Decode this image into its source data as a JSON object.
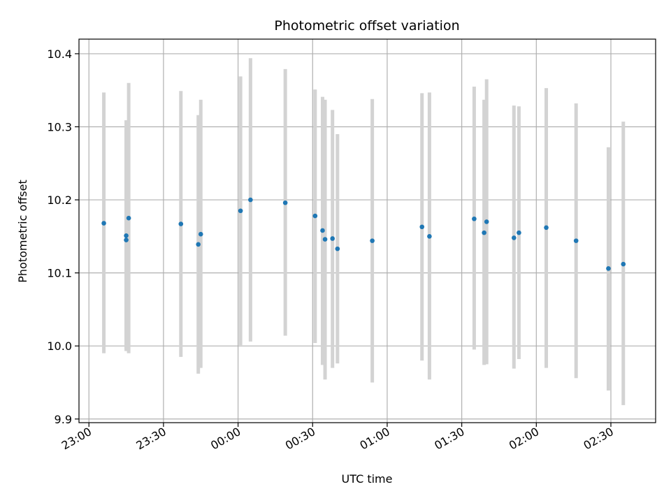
{
  "chart_data": {
    "type": "scatter",
    "title": "Photometric offset variation",
    "xlabel": "UTC time",
    "ylabel": "Photometric offset",
    "xlim": [
      "22:56",
      "02:48"
    ],
    "ylim": [
      9.895,
      10.42
    ],
    "x_ticks": [
      "23:00",
      "23:30",
      "00:00",
      "00:30",
      "01:00",
      "01:30",
      "02:00",
      "02:30"
    ],
    "y_ticks": [
      "9.9",
      "10.0",
      "10.1",
      "10.2",
      "10.3",
      "10.4"
    ],
    "grid": true,
    "point_color": "#1f77b4",
    "errorbar_color": "#d3d3d3",
    "points": [
      {
        "t": "23:06",
        "y": 10.168,
        "lo": 9.99,
        "hi": 10.347
      },
      {
        "t": "23:15",
        "y": 10.151,
        "lo": 9.995,
        "hi": 10.309
      },
      {
        "t": "23:15",
        "y": 10.145,
        "lo": 9.993,
        "hi": 10.297
      },
      {
        "t": "23:16",
        "y": 10.175,
        "lo": 9.99,
        "hi": 10.36
      },
      {
        "t": "23:37",
        "y": 10.167,
        "lo": 9.985,
        "hi": 10.349
      },
      {
        "t": "23:44",
        "y": 10.139,
        "lo": 9.962,
        "hi": 10.316
      },
      {
        "t": "23:45",
        "y": 10.153,
        "lo": 9.97,
        "hi": 10.337
      },
      {
        "t": "00:01",
        "y": 10.185,
        "lo": 10.001,
        "hi": 10.369
      },
      {
        "t": "00:05",
        "y": 10.2,
        "lo": 10.006,
        "hi": 10.394
      },
      {
        "t": "00:19",
        "y": 10.196,
        "lo": 10.014,
        "hi": 10.379
      },
      {
        "t": "00:31",
        "y": 10.178,
        "lo": 10.004,
        "hi": 10.351
      },
      {
        "t": "00:34",
        "y": 10.158,
        "lo": 9.974,
        "hi": 10.341
      },
      {
        "t": "00:35",
        "y": 10.146,
        "lo": 9.954,
        "hi": 10.337
      },
      {
        "t": "00:38",
        "y": 10.147,
        "lo": 9.97,
        "hi": 10.323
      },
      {
        "t": "00:40",
        "y": 10.133,
        "lo": 9.976,
        "hi": 10.29
      },
      {
        "t": "00:54",
        "y": 10.144,
        "lo": 9.95,
        "hi": 10.338
      },
      {
        "t": "01:14",
        "y": 10.163,
        "lo": 9.98,
        "hi": 10.346
      },
      {
        "t": "01:17",
        "y": 10.15,
        "lo": 9.954,
        "hi": 10.347
      },
      {
        "t": "01:35",
        "y": 10.174,
        "lo": 9.995,
        "hi": 10.355
      },
      {
        "t": "01:39",
        "y": 10.155,
        "lo": 9.974,
        "hi": 10.337
      },
      {
        "t": "01:40",
        "y": 10.17,
        "lo": 9.975,
        "hi": 10.365
      },
      {
        "t": "01:51",
        "y": 10.148,
        "lo": 9.969,
        "hi": 10.329
      },
      {
        "t": "01:53",
        "y": 10.155,
        "lo": 9.982,
        "hi": 10.328
      },
      {
        "t": "02:04",
        "y": 10.162,
        "lo": 9.97,
        "hi": 10.353
      },
      {
        "t": "02:16",
        "y": 10.144,
        "lo": 9.956,
        "hi": 10.332
      },
      {
        "t": "02:29",
        "y": 10.106,
        "lo": 9.939,
        "hi": 10.272
      },
      {
        "t": "02:35",
        "y": 10.112,
        "lo": 9.919,
        "hi": 10.307
      }
    ]
  }
}
